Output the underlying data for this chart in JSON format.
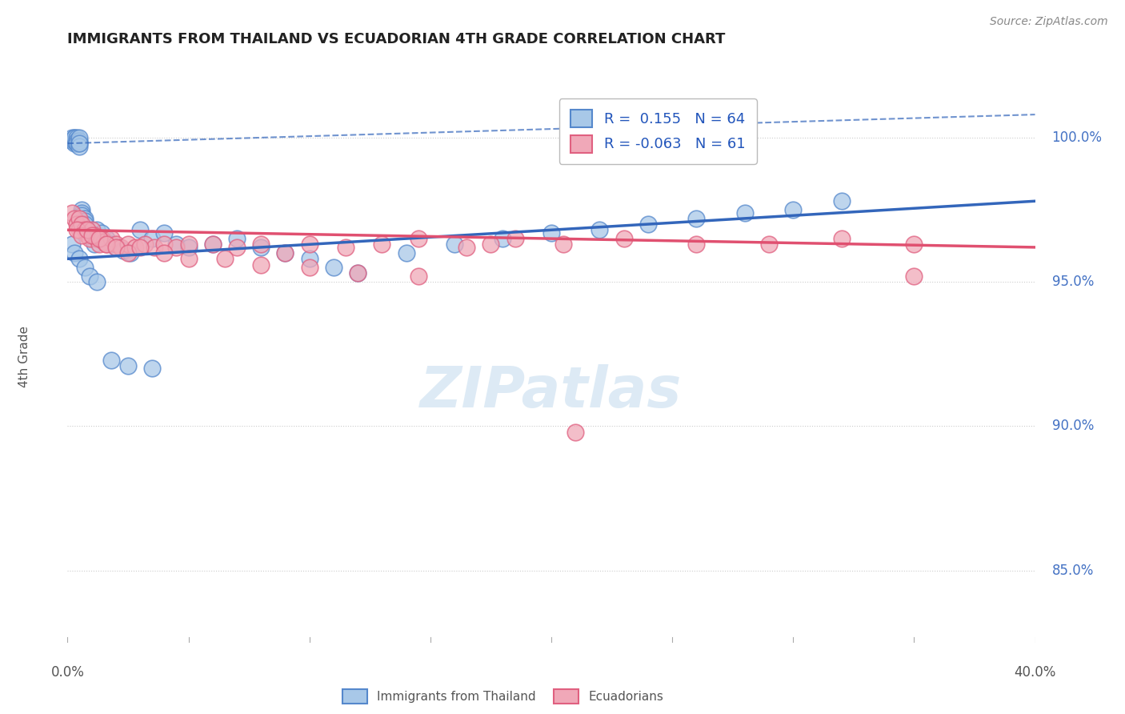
{
  "title": "IMMIGRANTS FROM THAILAND VS ECUADORIAN 4TH GRADE CORRELATION CHART",
  "source": "Source: ZipAtlas.com",
  "ylabel": "4th Grade",
  "ytick_labels": [
    "100.0%",
    "95.0%",
    "90.0%",
    "85.0%"
  ],
  "ytick_values": [
    1.0,
    0.95,
    0.9,
    0.85
  ],
  "xlim": [
    0.0,
    0.4
  ],
  "ylim": [
    0.825,
    1.018
  ],
  "legend_r1": "R =  0.155   N = 64",
  "legend_r2": "R = -0.063   N = 61",
  "blue_fill": "#a8c8e8",
  "pink_fill": "#f0a8b8",
  "blue_edge": "#5588cc",
  "pink_edge": "#e06080",
  "blue_line_color": "#3366bb",
  "pink_line_color": "#e05070",
  "watermark": "ZIPatlas",
  "blue_x": [
    0.002,
    0.002,
    0.003,
    0.003,
    0.003,
    0.003,
    0.004,
    0.004,
    0.004,
    0.004,
    0.004,
    0.005,
    0.005,
    0.005,
    0.005,
    0.005,
    0.006,
    0.006,
    0.006,
    0.007,
    0.007,
    0.007,
    0.008,
    0.009,
    0.01,
    0.011,
    0.012,
    0.014,
    0.016,
    0.018,
    0.02,
    0.023,
    0.026,
    0.03,
    0.035,
    0.04,
    0.045,
    0.05,
    0.06,
    0.07,
    0.08,
    0.09,
    0.1,
    0.11,
    0.12,
    0.14,
    0.16,
    0.18,
    0.2,
    0.22,
    0.24,
    0.26,
    0.28,
    0.3,
    0.32,
    0.002,
    0.003,
    0.005,
    0.007,
    0.009,
    0.012,
    0.018,
    0.025,
    0.035
  ],
  "blue_y": [
    1.0,
    0.999,
    1.0,
    0.998,
    0.999,
    1.0,
    0.999,
    0.998,
    1.0,
    0.999,
    0.998,
    0.998,
    0.999,
    1.0,
    0.997,
    0.998,
    0.975,
    0.974,
    0.973,
    0.972,
    0.971,
    0.97,
    0.968,
    0.967,
    0.965,
    0.963,
    0.968,
    0.967,
    0.965,
    0.963,
    0.962,
    0.961,
    0.96,
    0.968,
    0.965,
    0.967,
    0.963,
    0.962,
    0.963,
    0.965,
    0.962,
    0.96,
    0.958,
    0.955,
    0.953,
    0.96,
    0.963,
    0.965,
    0.967,
    0.968,
    0.97,
    0.972,
    0.974,
    0.975,
    0.978,
    0.963,
    0.96,
    0.958,
    0.955,
    0.952,
    0.95,
    0.923,
    0.921,
    0.92
  ],
  "pink_x": [
    0.002,
    0.003,
    0.004,
    0.005,
    0.005,
    0.006,
    0.007,
    0.008,
    0.009,
    0.01,
    0.011,
    0.012,
    0.013,
    0.014,
    0.015,
    0.016,
    0.018,
    0.02,
    0.022,
    0.025,
    0.028,
    0.032,
    0.036,
    0.04,
    0.045,
    0.05,
    0.06,
    0.07,
    0.08,
    0.09,
    0.1,
    0.115,
    0.13,
    0.145,
    0.165,
    0.185,
    0.205,
    0.23,
    0.26,
    0.29,
    0.32,
    0.35,
    0.004,
    0.006,
    0.008,
    0.01,
    0.013,
    0.016,
    0.02,
    0.025,
    0.03,
    0.04,
    0.05,
    0.065,
    0.08,
    0.1,
    0.12,
    0.145,
    0.175,
    0.21,
    0.35
  ],
  "pink_y": [
    0.974,
    0.972,
    0.97,
    0.972,
    0.968,
    0.97,
    0.968,
    0.966,
    0.965,
    0.968,
    0.966,
    0.965,
    0.963,
    0.965,
    0.964,
    0.963,
    0.965,
    0.963,
    0.962,
    0.963,
    0.962,
    0.963,
    0.962,
    0.963,
    0.962,
    0.963,
    0.963,
    0.962,
    0.963,
    0.96,
    0.963,
    0.962,
    0.963,
    0.965,
    0.962,
    0.965,
    0.963,
    0.965,
    0.963,
    0.963,
    0.965,
    0.963,
    0.968,
    0.966,
    0.968,
    0.966,
    0.965,
    0.963,
    0.962,
    0.96,
    0.962,
    0.96,
    0.958,
    0.958,
    0.956,
    0.955,
    0.953,
    0.952,
    0.963,
    0.898,
    0.952
  ]
}
